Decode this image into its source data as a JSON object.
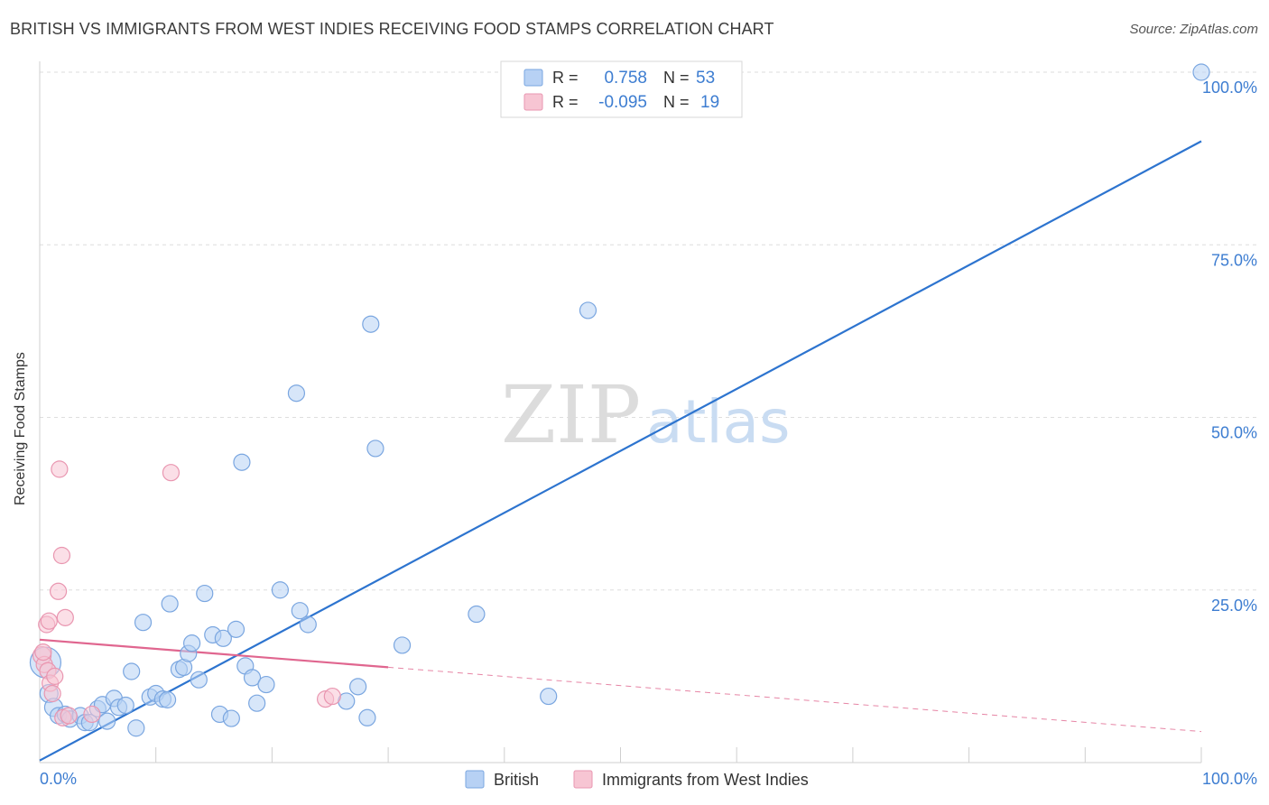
{
  "title": "BRITISH VS IMMIGRANTS FROM WEST INDIES RECEIVING FOOD STAMPS CORRELATION CHART",
  "source": "Source: ZipAtlas.com",
  "watermark": {
    "zip": "ZIP",
    "atlas": "atlas"
  },
  "colors": {
    "british_fill": "#b7d1f4",
    "british_stroke": "#7aa6e0",
    "british_line": "#2d74cf",
    "westindies_fill": "#f7c5d3",
    "westindies_stroke": "#e996b0",
    "westindies_line": "#e0668f",
    "value_text": "#3d7dd1"
  },
  "legend": {
    "rows": [
      {
        "r_label": "R =",
        "r_value": "0.758",
        "n_label": "N =",
        "n_value": "53"
      },
      {
        "r_label": "R =",
        "r_value": "-0.095",
        "n_label": "N =",
        "n_value": "19"
      }
    ]
  },
  "chart_data": {
    "type": "scatter",
    "title": "BRITISH VS IMMIGRANTS FROM WEST INDIES RECEIVING FOOD STAMPS CORRELATION CHART",
    "xlabel": "",
    "ylabel": "Receiving Food Stamps",
    "xlim": [
      0,
      100
    ],
    "ylim": [
      0,
      100
    ],
    "x_tick_labels": [
      "0.0%",
      "100.0%"
    ],
    "y_ticks": [
      {
        "value": 25,
        "label": "25.0%"
      },
      {
        "value": 50,
        "label": "50.0%"
      },
      {
        "value": 75,
        "label": "75.0%"
      },
      {
        "value": 100,
        "label": "100.0%"
      }
    ],
    "grid": true,
    "legend_position": "bottom",
    "series": [
      {
        "name": "British",
        "r": 0.758,
        "n": 53,
        "trend": {
          "x0": 0,
          "y0": 0.3,
          "x1": 100,
          "y1": 90,
          "dashed_from": null
        },
        "points": [
          [
            0.5,
            14.5,
            17
          ],
          [
            0.8,
            10,
            10
          ],
          [
            1.2,
            8,
            10
          ],
          [
            1.6,
            6.8,
            9
          ],
          [
            2.2,
            7,
            9
          ],
          [
            2.6,
            6.3,
            9
          ],
          [
            3.5,
            6.8,
            9
          ],
          [
            3.9,
            5.8,
            9
          ],
          [
            4.3,
            5.8,
            9
          ],
          [
            5.0,
            7.8,
            9
          ],
          [
            5.4,
            8.4,
            9
          ],
          [
            5.8,
            6.0,
            9
          ],
          [
            6.4,
            9.3,
            9
          ],
          [
            6.8,
            8.0,
            9
          ],
          [
            7.4,
            8.3,
            9
          ],
          [
            7.9,
            13.2,
            9
          ],
          [
            8.3,
            5.0,
            9
          ],
          [
            8.9,
            20.3,
            9
          ],
          [
            9.5,
            9.5,
            9
          ],
          [
            10.0,
            10.0,
            9
          ],
          [
            10.6,
            9.2,
            9
          ],
          [
            11.0,
            9.1,
            9
          ],
          [
            11.2,
            23.0,
            9
          ],
          [
            12.0,
            13.5,
            9
          ],
          [
            12.4,
            13.8,
            9
          ],
          [
            12.8,
            15.8,
            9
          ],
          [
            13.1,
            17.3,
            9
          ],
          [
            13.7,
            12.0,
            9
          ],
          [
            14.2,
            24.5,
            9
          ],
          [
            14.9,
            18.5,
            9
          ],
          [
            15.5,
            7.0,
            9
          ],
          [
            15.8,
            18.0,
            9
          ],
          [
            16.5,
            6.4,
            9
          ],
          [
            16.9,
            19.3,
            9
          ],
          [
            17.4,
            43.5,
            9
          ],
          [
            17.7,
            14.0,
            9
          ],
          [
            18.3,
            12.3,
            9
          ],
          [
            18.7,
            8.6,
            9
          ],
          [
            19.5,
            11.3,
            9
          ],
          [
            20.7,
            25.0,
            9
          ],
          [
            22.1,
            53.5,
            9
          ],
          [
            22.4,
            22.0,
            9
          ],
          [
            23.1,
            20.0,
            9
          ],
          [
            26.4,
            8.9,
            9
          ],
          [
            27.4,
            11.0,
            9
          ],
          [
            28.2,
            6.5,
            9
          ],
          [
            28.5,
            63.5,
            9
          ],
          [
            28.9,
            45.5,
            9
          ],
          [
            31.2,
            17.0,
            9
          ],
          [
            37.6,
            21.5,
            9
          ],
          [
            43.8,
            9.6,
            9
          ],
          [
            47.2,
            65.5,
            9
          ],
          [
            100.0,
            100.0,
            9
          ]
        ]
      },
      {
        "name": "Immigrants from West Indies",
        "r": -0.095,
        "n": 19,
        "trend": {
          "x0": 0,
          "y0": 17.8,
          "x1": 100,
          "y1": 4.5,
          "dashed_from": 30
        },
        "points": [
          [
            0.2,
            15.5,
            10
          ],
          [
            0.4,
            14.2,
            9
          ],
          [
            0.6,
            20.0,
            9
          ],
          [
            0.7,
            13.3,
            9
          ],
          [
            0.8,
            20.5,
            9
          ],
          [
            0.9,
            11.5,
            9
          ],
          [
            1.1,
            10.0,
            9
          ],
          [
            1.3,
            12.5,
            9
          ],
          [
            1.6,
            24.8,
            9
          ],
          [
            1.7,
            42.5,
            9
          ],
          [
            1.9,
            30.0,
            9
          ],
          [
            2.0,
            6.5,
            9
          ],
          [
            2.2,
            21.0,
            9
          ],
          [
            2.5,
            6.8,
            9
          ],
          [
            4.5,
            7.0,
            9
          ],
          [
            11.3,
            42.0,
            9
          ],
          [
            24.6,
            9.2,
            9
          ],
          [
            25.2,
            9.6,
            9
          ],
          [
            0.3,
            16.0,
            9
          ]
        ]
      }
    ]
  }
}
